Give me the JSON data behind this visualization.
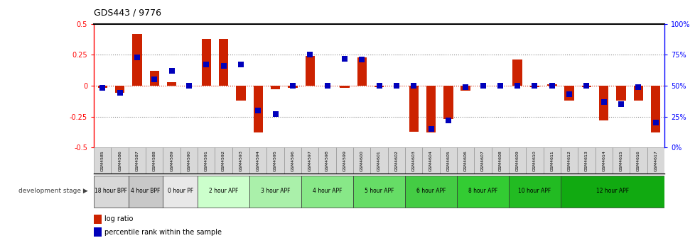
{
  "title": "GDS443 / 9776",
  "samples": [
    "GSM4585",
    "GSM4586",
    "GSM4587",
    "GSM4588",
    "GSM4589",
    "GSM4590",
    "GSM4591",
    "GSM4592",
    "GSM4593",
    "GSM4594",
    "GSM4595",
    "GSM4596",
    "GSM4597",
    "GSM4598",
    "GSM4599",
    "GSM4600",
    "GSM4601",
    "GSM4602",
    "GSM4603",
    "GSM4604",
    "GSM4605",
    "GSM4606",
    "GSM4607",
    "GSM4608",
    "GSM4609",
    "GSM4610",
    "GSM4611",
    "GSM4612",
    "GSM4613",
    "GSM4614",
    "GSM4615",
    "GSM4616",
    "GSM4617"
  ],
  "log_ratios": [
    -0.02,
    -0.06,
    0.42,
    0.12,
    0.03,
    0.0,
    0.38,
    0.38,
    -0.12,
    -0.38,
    -0.03,
    -0.02,
    0.24,
    0.0,
    -0.02,
    0.23,
    -0.01,
    0.0,
    -0.37,
    -0.38,
    -0.27,
    -0.04,
    0.0,
    0.0,
    0.21,
    -0.01,
    0.01,
    -0.12,
    -0.01,
    -0.28,
    -0.12,
    -0.12,
    -0.38
  ],
  "percentile_ranks": [
    48,
    44,
    73,
    55,
    62,
    50,
    67,
    66,
    67,
    30,
    27,
    50,
    75,
    50,
    72,
    71,
    50,
    50,
    50,
    15,
    22,
    49,
    50,
    50,
    50,
    50,
    50,
    43,
    50,
    37,
    35,
    49,
    20
  ],
  "stages": [
    {
      "label": "18 hour BPF",
      "start": 0,
      "end": 2,
      "color": "#d0d0d0"
    },
    {
      "label": "4 hour BPF",
      "start": 2,
      "end": 4,
      "color": "#c0c0c0"
    },
    {
      "label": "0 hour PF",
      "start": 4,
      "end": 6,
      "color": "#e0e0e0"
    },
    {
      "label": "2 hour APF",
      "start": 6,
      "end": 9,
      "color": "#ccffcc"
    },
    {
      "label": "3 hour APF",
      "start": 9,
      "end": 12,
      "color": "#aaf0aa"
    },
    {
      "label": "4 hour APF",
      "start": 12,
      "end": 15,
      "color": "#88e888"
    },
    {
      "label": "5 hour APF",
      "start": 15,
      "end": 18,
      "color": "#66dd66"
    },
    {
      "label": "6 hour APF",
      "start": 18,
      "end": 21,
      "color": "#44cc44"
    },
    {
      "label": "8 hour APF",
      "start": 21,
      "end": 24,
      "color": "#33cc33"
    },
    {
      "label": "10 hour APF",
      "start": 24,
      "end": 27,
      "color": "#22bb22"
    },
    {
      "label": "12 hour APF",
      "start": 27,
      "end": 33,
      "color": "#11aa11"
    }
  ],
  "ylim": [
    -0.5,
    0.5
  ],
  "yticks_left": [
    -0.5,
    -0.25,
    0,
    0.25,
    0.5
  ],
  "yticks_right_pct": [
    0,
    25,
    50,
    75,
    100
  ],
  "bar_color": "#cc2200",
  "pct_color": "#0000bb",
  "zero_line_color": "#cc2200",
  "dot_grid_color": "#888888",
  "bg_color": "#ffffff",
  "bar_width": 0.55,
  "pct_marker_size": 40
}
